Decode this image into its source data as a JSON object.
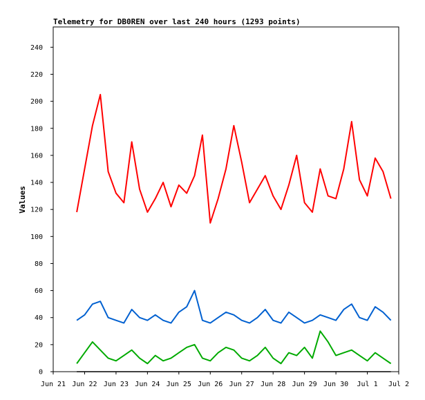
{
  "chart_data": {
    "type": "line",
    "title": "Telemetry for DB0REN over last 240 hours (1293 points)",
    "ylabel": "Values",
    "xlabel": "",
    "ylim": [
      0,
      255
    ],
    "xlim": [
      "Jun 21",
      "Jul 2"
    ],
    "grid": false,
    "legend": "none",
    "y_ticks": [
      0,
      20,
      40,
      60,
      80,
      100,
      120,
      140,
      160,
      180,
      200,
      220,
      240
    ],
    "x_ticks": [
      "Jun 21",
      "Jun 22",
      "Jun 23",
      "Jun 24",
      "Jun 25",
      "Jun 26",
      "Jun 27",
      "Jun 28",
      "Jun 29",
      "Jun 30",
      "Jul 1",
      "Jul 2"
    ],
    "x": [
      "Jun 21 18:00",
      "Jun 22 00:00",
      "Jun 22 06:00",
      "Jun 22 12:00",
      "Jun 22 18:00",
      "Jun 23 00:00",
      "Jun 23 06:00",
      "Jun 23 12:00",
      "Jun 23 18:00",
      "Jun 24 00:00",
      "Jun 24 06:00",
      "Jun 24 12:00",
      "Jun 24 18:00",
      "Jun 25 00:00",
      "Jun 25 06:00",
      "Jun 25 12:00",
      "Jun 25 18:00",
      "Jun 26 00:00",
      "Jun 26 06:00",
      "Jun 26 12:00",
      "Jun 26 18:00",
      "Jun 27 00:00",
      "Jun 27 06:00",
      "Jun 27 12:00",
      "Jun 27 18:00",
      "Jun 28 00:00",
      "Jun 28 06:00",
      "Jun 28 12:00",
      "Jun 28 18:00",
      "Jun 29 00:00",
      "Jun 29 06:00",
      "Jun 29 12:00",
      "Jun 29 18:00",
      "Jun 30 00:00",
      "Jun 30 06:00",
      "Jun 30 12:00",
      "Jun 30 18:00",
      "Jul 1 00:00",
      "Jul 1 06:00",
      "Jul 1 12:00",
      "Jul 1 18:00"
    ],
    "series": [
      {
        "color": "#ff0000",
        "values": [
          118,
          150,
          182,
          205,
          148,
          132,
          125,
          170,
          135,
          118,
          128,
          140,
          122,
          138,
          132,
          145,
          175,
          110,
          128,
          150,
          182,
          155,
          125,
          135,
          145,
          130,
          120,
          138,
          160,
          125,
          118,
          150,
          130,
          128,
          150,
          185,
          142,
          130,
          158,
          148,
          128
        ]
      },
      {
        "color": "#0060d0",
        "values": [
          38,
          42,
          50,
          52,
          40,
          38,
          36,
          46,
          40,
          38,
          42,
          38,
          36,
          44,
          48,
          60,
          38,
          36,
          40,
          44,
          42,
          38,
          36,
          40,
          46,
          38,
          36,
          44,
          40,
          36,
          38,
          42,
          40,
          38,
          46,
          50,
          40,
          38,
          48,
          44,
          38
        ]
      },
      {
        "color": "#00aa00",
        "values": [
          6,
          14,
          22,
          16,
          10,
          8,
          12,
          16,
          10,
          6,
          12,
          8,
          10,
          14,
          18,
          20,
          10,
          8,
          14,
          18,
          16,
          10,
          8,
          12,
          18,
          10,
          6,
          14,
          12,
          18,
          10,
          30,
          22,
          12,
          14,
          16,
          12,
          8,
          14,
          10,
          6
        ]
      },
      {
        "color": "#000000",
        "values": [
          0,
          0,
          0,
          0,
          0,
          0,
          0,
          0,
          0,
          0,
          0,
          0,
          0,
          0,
          0,
          0,
          0,
          0,
          0,
          0,
          0,
          0,
          0,
          0,
          0,
          0,
          0,
          0,
          0,
          0,
          0,
          0,
          0,
          0,
          0,
          0,
          0,
          0,
          0,
          0,
          0
        ]
      }
    ]
  }
}
